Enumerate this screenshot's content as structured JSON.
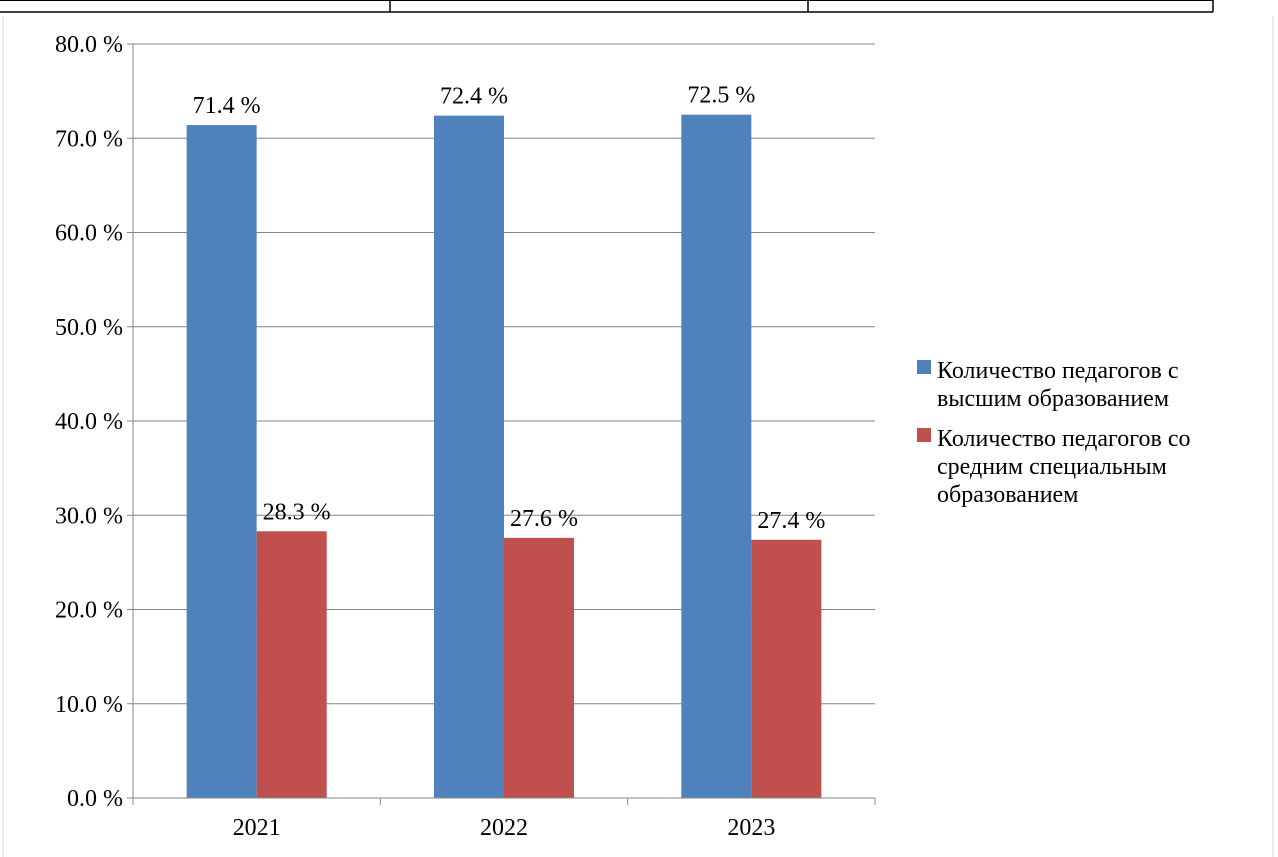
{
  "chart_data": {
    "type": "bar",
    "categories": [
      "2021",
      "2022",
      "2023"
    ],
    "series": [
      {
        "name": "Количество педагогов с высшим образованием",
        "values": [
          71.4,
          72.4,
          72.5
        ],
        "color": "#4f81bd",
        "legend_lines": [
          "Количество педагогов с",
          "высшим образованием"
        ],
        "labels": [
          "71.4 %",
          "72.4 %",
          "72.5 %"
        ]
      },
      {
        "name": "Количество педагогов со средним специальным образованием",
        "values": [
          28.3,
          27.6,
          27.4
        ],
        "color": "#c0504d",
        "legend_lines": [
          "Количество педагогов со",
          "средним специальным",
          "образованием"
        ],
        "labels": [
          "28.3 %",
          "27.6 %",
          "27.4 %"
        ]
      }
    ],
    "ylim": [
      0,
      80
    ],
    "yticks": [
      "0.0 %",
      "10.0 %",
      "20.0 %",
      "30.0 %",
      "40.0 %",
      "50.0 %",
      "60.0 %",
      "70.0 %",
      "80.0 %"
    ],
    "grid": true,
    "legend_position": "right",
    "title": "",
    "xlabel": "",
    "ylabel": ""
  }
}
